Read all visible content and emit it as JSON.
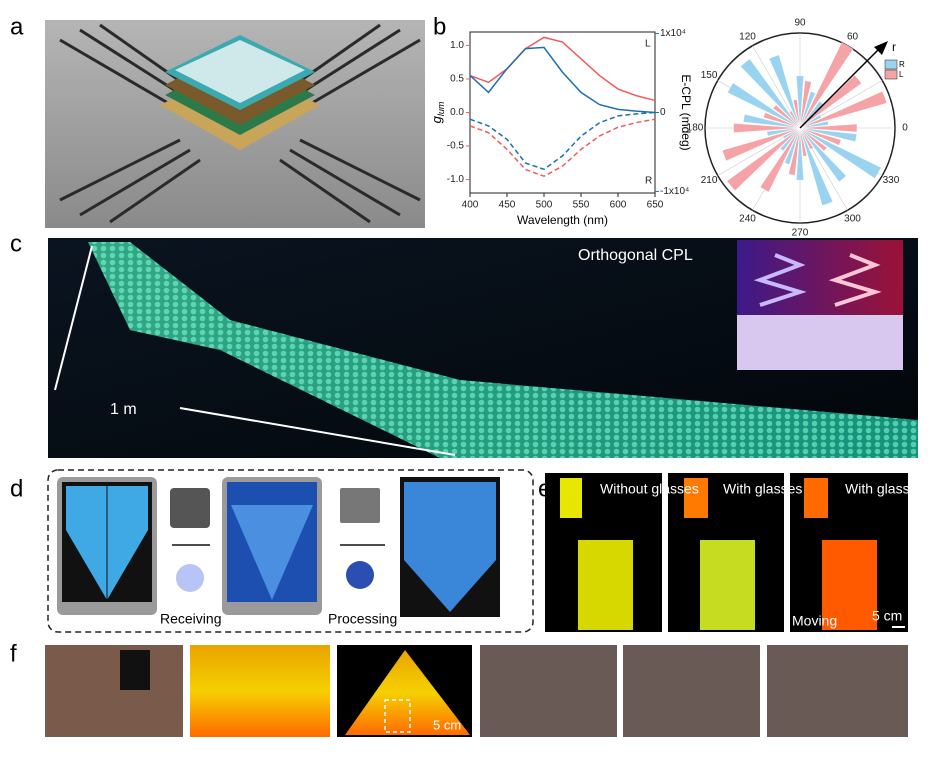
{
  "panel_labels": [
    "a",
    "b",
    "c",
    "d",
    "e",
    "f"
  ],
  "panel_c": {
    "title": "Orthogonal CPL",
    "scale": "1 m"
  },
  "panel_d": {
    "steps": [
      "Receiving",
      "Processing"
    ]
  },
  "panel_e": {
    "captions": [
      "Without glasses",
      "With glasses",
      "With glasses"
    ],
    "moving": "Moving",
    "scale": "5 cm"
  },
  "panel_f": {
    "scale": "5 cm"
  },
  "chart_data": [
    {
      "type": "line",
      "xlabel": "Wavelength (nm)",
      "ylabel": {
        "main": "g",
        "sub": "lum"
      },
      "y2label": "E-CPL (mdeg)",
      "corner_labels": [
        "L",
        "R"
      ],
      "x": [
        400,
        425,
        450,
        475,
        500,
        525,
        550,
        575,
        600,
        625,
        650
      ],
      "xlim": [
        400,
        650
      ],
      "xticks": [
        400,
        450,
        500,
        550,
        600,
        650
      ],
      "ylim": [
        -1.2,
        1.2
      ],
      "yticks": [
        {
          "value": 1.0,
          "label": "1.0"
        },
        0.5,
        {
          "value": 0.0,
          "label": "0.0"
        },
        -0.5,
        {
          "value": -1.0,
          "label": "-1.0"
        }
      ],
      "y2lim": [
        -10200,
        10200
      ],
      "y2ticks": [
        {
          "value": 10000,
          "label": "1x10⁴"
        },
        0,
        {
          "value": -10000,
          "label": "-1x10⁴"
        }
      ],
      "series": [
        {
          "name": "L",
          "color": "#f25a5a",
          "dash": false,
          "values": [
            0.55,
            0.45,
            0.65,
            0.95,
            1.12,
            1.05,
            0.8,
            0.55,
            0.35,
            0.25,
            0.18
          ]
        },
        {
          "name": "L",
          "color": "#f25a5a",
          "dash": true,
          "values": [
            -0.2,
            -0.3,
            -0.55,
            -0.85,
            -0.95,
            -0.8,
            -0.55,
            -0.35,
            -0.22,
            -0.15,
            -0.1
          ]
        },
        {
          "name": "R",
          "color": "#1f6fb0",
          "dash": false,
          "axis": "y2",
          "values": [
            4700,
            2550,
            5550,
            8100,
            8250,
            5100,
            2550,
            1000,
            400,
            170,
            0
          ]
        },
        {
          "name": "R",
          "color": "#1f6fb0",
          "dash": true,
          "axis": "y2",
          "values": [
            -850,
            -1700,
            -3400,
            -6400,
            -7200,
            -5500,
            -3000,
            -1300,
            -430,
            -170,
            0
          ]
        }
      ]
    },
    {
      "type": "polar_bar",
      "radial_label": "r",
      "theta": [
        0,
        10,
        20,
        30,
        40,
        50,
        60,
        70,
        80,
        90,
        100,
        110,
        120,
        130,
        140,
        150,
        160,
        170,
        180,
        190,
        200,
        210,
        220,
        230,
        240,
        250,
        260,
        270,
        280,
        290,
        300,
        310,
        320,
        330,
        340,
        350
      ],
      "thetaticks": [
        0,
        30,
        60,
        90,
        120,
        150,
        180,
        210,
        240,
        270,
        300,
        330
      ],
      "rlim": [
        0,
        1
      ],
      "series": [
        {
          "name": "R",
          "color": "#9ad3f0",
          "values": [
            null,
            0.3,
            null,
            0.25,
            null,
            0.35,
            null,
            0.4,
            null,
            0.55,
            null,
            0.8,
            null,
            0.9,
            null,
            0.85,
            null,
            0.6,
            null,
            0.35,
            null,
            0.2,
            null,
            0.3,
            null,
            0.4,
            null,
            0.55,
            null,
            0.85,
            null,
            0.7,
            null,
            0.95,
            null,
            0.6
          ]
        },
        {
          "name": "L",
          "color": "#f5a3a6",
          "values": [
            0.6,
            null,
            0.95,
            null,
            0.8,
            null,
            1.0,
            null,
            0.5,
            null,
            0.3,
            null,
            0.2,
            null,
            0.35,
            null,
            0.4,
            null,
            0.7,
            null,
            0.85,
            null,
            0.95,
            null,
            0.75,
            null,
            0.5,
            null,
            0.3,
            null,
            0.25,
            null,
            0.35,
            null,
            0.45,
            null
          ]
        }
      ]
    }
  ]
}
